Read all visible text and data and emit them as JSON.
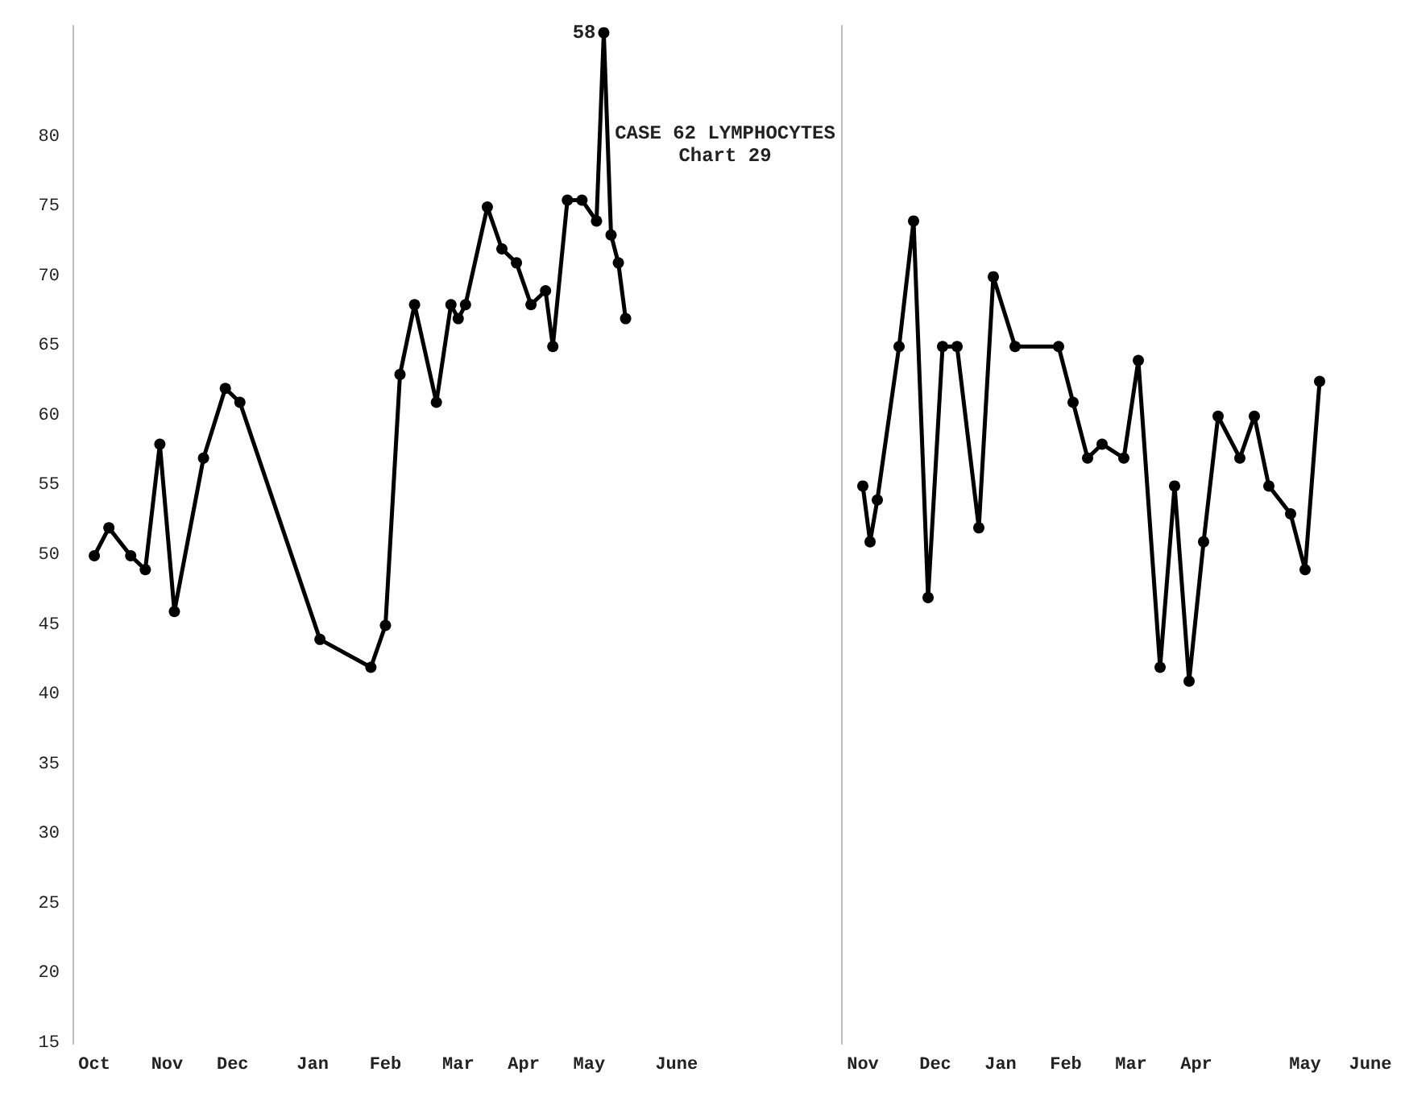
{
  "chart_data": [
    {
      "type": "line",
      "title": "CASE 62 LYMPHOCYTES",
      "subtitle": "Chart 29",
      "annotations": [
        "58"
      ],
      "categories": [
        null,
        null,
        null,
        "Oct",
        null,
        null,
        null,
        null,
        null,
        null,
        null,
        null,
        null,
        "Nov",
        null,
        null,
        null,
        null,
        null,
        null,
        null,
        null,
        "Dec",
        null,
        null,
        null,
        null,
        null,
        null,
        null,
        null,
        null,
        null,
        "Jan",
        null,
        null,
        null,
        null,
        null,
        null,
        null,
        null,
        null,
        "Feb",
        null,
        null,
        null,
        null,
        null,
        null,
        null,
        null,
        null,
        "Mar",
        null,
        null,
        null,
        null,
        null,
        null,
        null,
        null,
        "Apr",
        null,
        null,
        null,
        null,
        null,
        null,
        null,
        null,
        "May",
        null,
        null,
        null,
        null,
        null,
        null,
        null,
        null,
        null,
        null,
        null,
        "June",
        null,
        null,
        null,
        null,
        null,
        null
      ],
      "ylim": [
        15,
        88
      ],
      "yticks": [
        15,
        20,
        25,
        30,
        35,
        40,
        45,
        50,
        55,
        60,
        65,
        70,
        75,
        80
      ],
      "series": [
        {
          "color": "#000000",
          "values": [
            null,
            null,
            null,
            50,
            null,
            52,
            null,
            null,
            50,
            null,
            49,
            null,
            58,
            null,
            46,
            null,
            null,
            null,
            57,
            null,
            null,
            62,
            null,
            61,
            null,
            null,
            null,
            null,
            null,
            null,
            null,
            null,
            null,
            null,
            44,
            null,
            null,
            null,
            null,
            null,
            null,
            42,
            null,
            45,
            null,
            63,
            null,
            68,
            null,
            null,
            61,
            null,
            68,
            67,
            68,
            null,
            null,
            75,
            null,
            72,
            null,
            71,
            null,
            68,
            null,
            69,
            65,
            null,
            75.5,
            null,
            75.5,
            null,
            74,
            87.5,
            73,
            71,
            67,
            null,
            null,
            null,
            null,
            null,
            null,
            null,
            null,
            null,
            null,
            null,
            null,
            null
          ]
        }
      ],
      "marker": "circle",
      "line_style": "solid"
    },
    {
      "type": "line",
      "categories": [
        null,
        null,
        null,
        "Nov",
        null,
        null,
        null,
        null,
        null,
        null,
        null,
        null,
        null,
        "Dec",
        null,
        null,
        null,
        null,
        null,
        null,
        null,
        null,
        "Jan",
        null,
        null,
        null,
        null,
        null,
        null,
        null,
        null,
        "Feb",
        null,
        null,
        null,
        null,
        null,
        null,
        null,
        null,
        "Mar",
        null,
        null,
        null,
        null,
        null,
        null,
        null,
        null,
        "Apr",
        null,
        null,
        null,
        null,
        null,
        null,
        null,
        null,
        null,
        null,
        null,
        null,
        null,
        null,
        "May",
        null,
        null,
        null,
        null,
        null,
        null,
        null,
        null,
        "June",
        null,
        null
      ],
      "ylim": [
        15,
        88
      ],
      "yticks": [
        15,
        20,
        25,
        30,
        35,
        40,
        45,
        50,
        55,
        60,
        65,
        70,
        75,
        80
      ],
      "tick_labels": "x",
      "series": [
        {
          "color": "#000000",
          "values": [
            null,
            null,
            null,
            55,
            51,
            54,
            null,
            null,
            65,
            null,
            74,
            null,
            47,
            null,
            65,
            null,
            65,
            null,
            null,
            52,
            null,
            70,
            null,
            null,
            65,
            null,
            null,
            null,
            null,
            null,
            65,
            null,
            61,
            null,
            57,
            null,
            58,
            null,
            null,
            57,
            null,
            64,
            null,
            null,
            42,
            null,
            55,
            null,
            41,
            null,
            51,
            null,
            60,
            null,
            null,
            57,
            null,
            60,
            null,
            55,
            null,
            null,
            53,
            null,
            49,
            null,
            62.5,
            null,
            null,
            null,
            null,
            null,
            null,
            null,
            null,
            null
          ]
        }
      ],
      "marker": "circle",
      "line_style": "solid"
    }
  ]
}
